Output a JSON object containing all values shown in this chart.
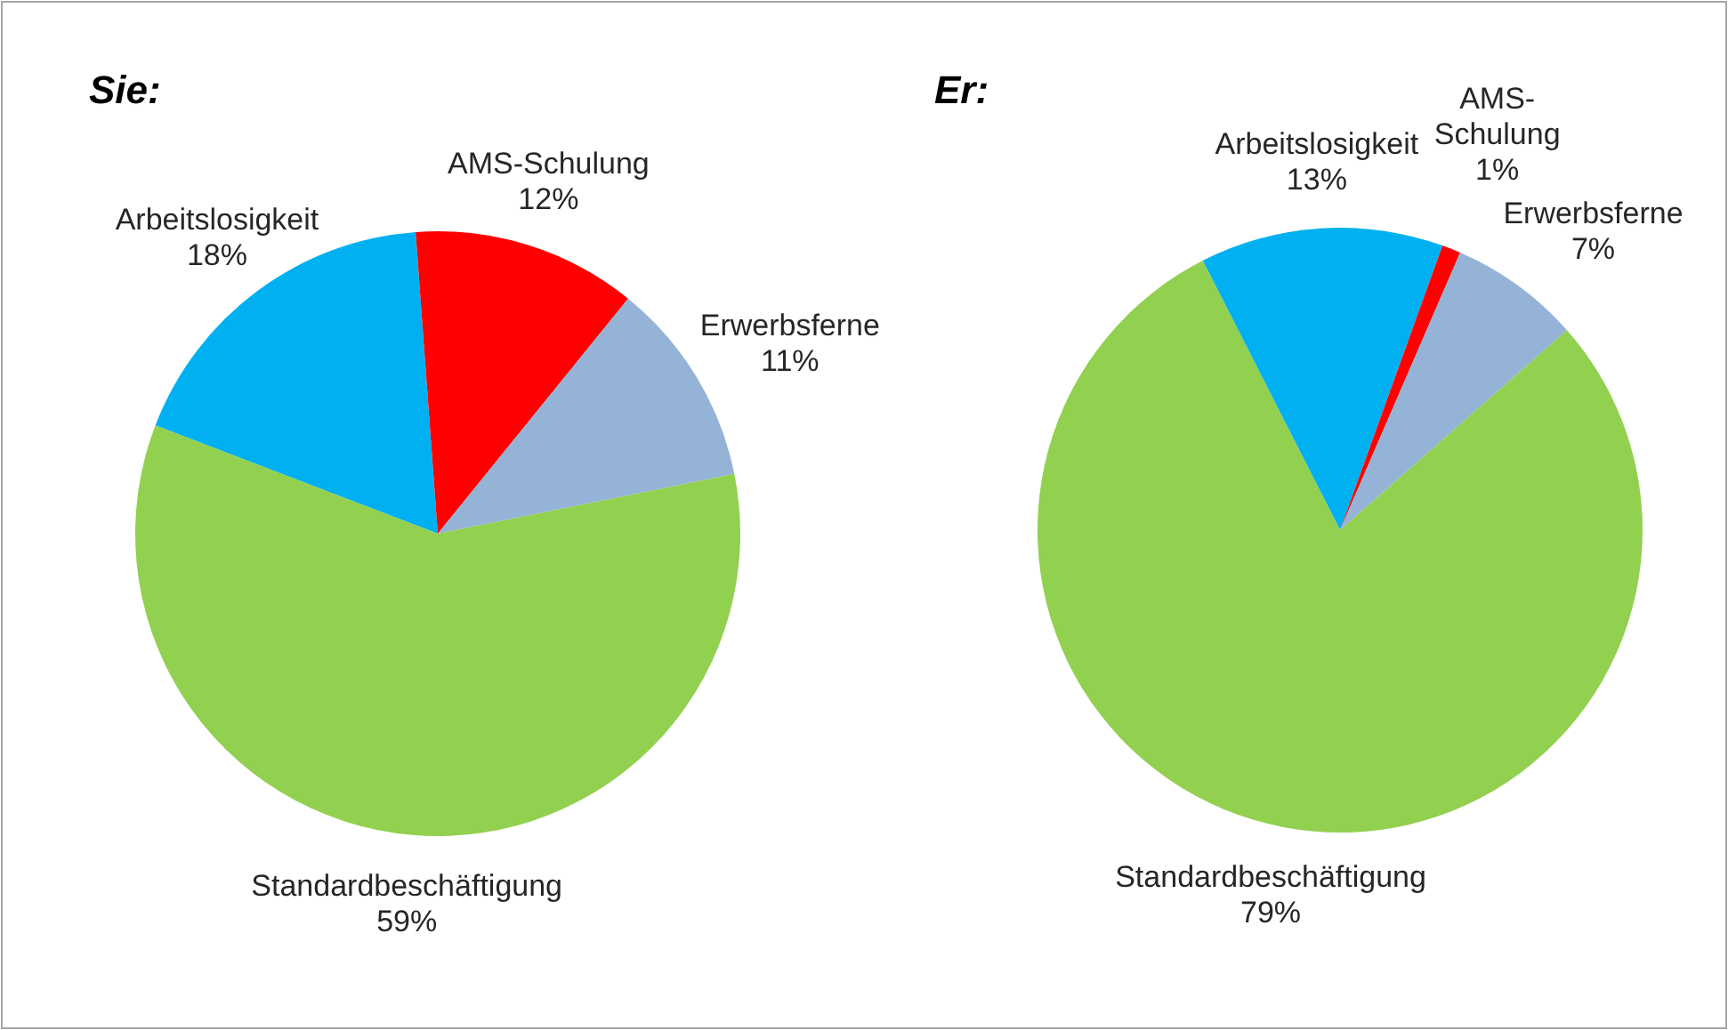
{
  "chart_data": [
    {
      "type": "pie",
      "title": "Sie:",
      "categories": [
        "Arbeitslosigkeit",
        "AMS-Schulung",
        "Erwerbsferne",
        "Standardbeschäftigung"
      ],
      "values": [
        18,
        12,
        11,
        59
      ],
      "colors": [
        "#00b0f0",
        "#ff0000",
        "#95b3d7",
        "#92d050"
      ],
      "value_labels": [
        "18%",
        "12%",
        "11%",
        "59%"
      ]
    },
    {
      "type": "pie",
      "title": "Er:",
      "categories": [
        "Arbeitslosigkeit",
        "AMS-Schulung",
        "Erwerbsferne",
        "Standardbeschäftigung"
      ],
      "values": [
        13,
        1,
        7,
        79
      ],
      "colors": [
        "#00b0f0",
        "#ff0000",
        "#95b3d7",
        "#92d050"
      ],
      "value_labels": [
        "13%",
        "1%",
        "7%",
        "79%"
      ]
    }
  ]
}
